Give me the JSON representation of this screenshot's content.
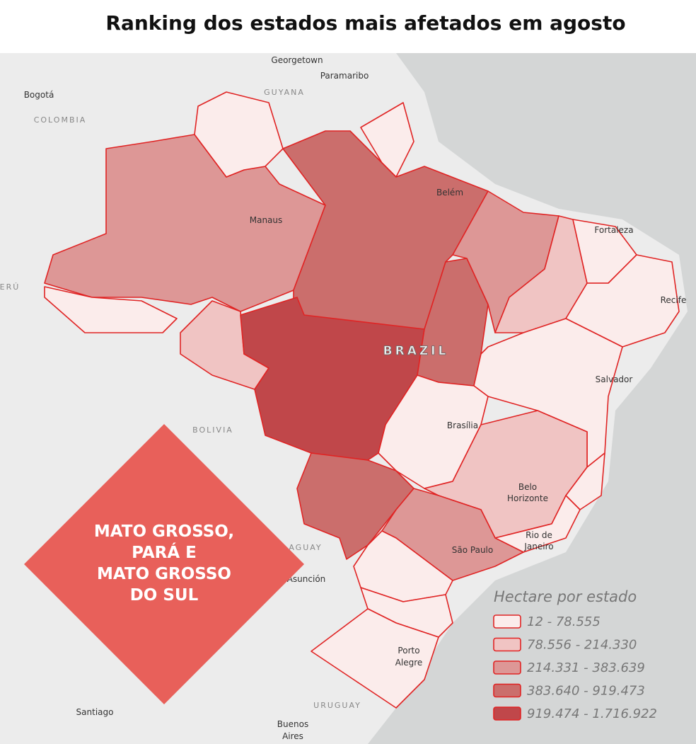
{
  "title": "Ranking dos estados mais afetados em agosto",
  "places": [
    "Georgetown",
    "Paramaribo",
    "GUYANA",
    "Bogotá",
    "COLOMBIA",
    "ERÚ",
    "Manaus",
    "Belém",
    "Fortaleza",
    "Recife",
    "BRAZIL",
    "Salvador",
    "BOLIVIA",
    "Brasília",
    [
      "Belo",
      "Horizonte"
    ],
    [
      "Rio de",
      "Janeiro"
    ],
    "São Paulo",
    "AGUAY",
    "Asunción",
    [
      "Porto",
      "Alegre"
    ],
    "URUGUAY",
    "Santiago",
    [
      "Buenos",
      "Aires"
    ]
  ],
  "callout": [
    "MATO GROSSO,",
    "PARÁ E",
    "MATO GROSSO",
    "DO SUL"
  ],
  "legend": {
    "title": "Hectare por estado",
    "items": [
      {
        "label": "12 - 78.555",
        "color": "#fbeceb"
      },
      {
        "label": "78.556 - 214.330",
        "color": "#f0c4c3"
      },
      {
        "label": "214.331 - 383.639",
        "color": "#dd9796"
      },
      {
        "label": "383.640 - 919.473",
        "color": "#cb6e6c"
      },
      {
        "label": "919.474 - 1.716.922",
        "color": "#c0474a"
      }
    ]
  }
}
